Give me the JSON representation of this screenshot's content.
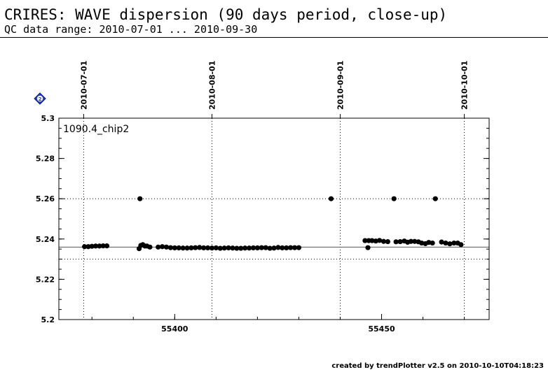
{
  "title": "CRIRES: WAVE dispersion (90 days period, close-up)",
  "subtitle": "QC data range: 2010-07-01 ... 2010-09-30",
  "footer": "created by trendPlotter v2.5 on 2010-10-10T04:18:23",
  "badge_text": "2",
  "chart_data": {
    "type": "scatter",
    "panel_label": "1090.4_chip2",
    "xlim": [
      55372,
      55476
    ],
    "ylim": [
      5.2,
      5.3
    ],
    "xticks": [
      55400,
      55450
    ],
    "yticks": [
      5.2,
      5.22,
      5.24,
      5.26,
      5.28,
      5.3
    ],
    "ytick_labels": [
      "5.2",
      "5.22",
      "5.24",
      "5.26",
      "5.28",
      "5.3"
    ],
    "xtick_labels": [
      "55400",
      "55450"
    ],
    "date_markers": [
      {
        "x": 55378,
        "label": "2010-07-01"
      },
      {
        "x": 55409,
        "label": "2010-08-01"
      },
      {
        "x": 55440,
        "label": "2010-09-01"
      },
      {
        "x": 55470,
        "label": "2010-10-01"
      }
    ],
    "reference_lines": {
      "mean": 5.236,
      "limits": [
        5.23,
        5.26
      ]
    },
    "grid": "dotted at date markers and limits",
    "points": {
      "x": [
        55378.2,
        55379.1,
        55380.0,
        55380.9,
        55381.8,
        55382.7,
        55383.6,
        55391.4,
        55391.8,
        55392.3,
        55392.8,
        55393.3,
        55394.0,
        55396.0,
        55397.0,
        55398.0,
        55399.0,
        55400.0,
        55401.0,
        55402.0,
        55403.0,
        55404.0,
        55405.0,
        55406.0,
        55407.0,
        55408.0,
        55409.0,
        55410.0,
        55411.0,
        55412.0,
        55413.0,
        55414.0,
        55415.0,
        55416.0,
        55417.0,
        55418.0,
        55419.0,
        55420.0,
        55421.0,
        55422.0,
        55423.0,
        55424.0,
        55425.0,
        55426.0,
        55427.0,
        55428.0,
        55429.0,
        55430.0,
        55391.6,
        55437.8,
        55446.0,
        55446.9,
        55447.7,
        55448.6,
        55449.5,
        55450.5,
        55451.5,
        55453.5,
        55454.5,
        55455.5,
        55456.3,
        55457.1,
        55458.0,
        55458.9,
        55459.7,
        55460.6,
        55461.4,
        55464.5,
        55465.5,
        55466.5,
        55467.5,
        55468.4,
        55469.2,
        55446.7,
        55453.0,
        55463.0,
        55462.3
      ],
      "y": [
        5.2362,
        5.2362,
        5.2364,
        5.2365,
        5.2365,
        5.2366,
        5.2366,
        5.2352,
        5.2368,
        5.2372,
        5.2365,
        5.2365,
        5.236,
        5.236,
        5.2362,
        5.236,
        5.2357,
        5.2356,
        5.2356,
        5.2355,
        5.2355,
        5.2356,
        5.2357,
        5.2358,
        5.2356,
        5.2356,
        5.2355,
        5.2356,
        5.2354,
        5.2355,
        5.2356,
        5.2355,
        5.2354,
        5.2354,
        5.2355,
        5.2355,
        5.2356,
        5.2356,
        5.2357,
        5.2357,
        5.2354,
        5.2355,
        5.2358,
        5.2356,
        5.2356,
        5.2357,
        5.2357,
        5.2357,
        5.26,
        5.26,
        5.2392,
        5.2392,
        5.2392,
        5.239,
        5.2393,
        5.2388,
        5.2387,
        5.2386,
        5.2387,
        5.239,
        5.2384,
        5.2388,
        5.2388,
        5.2386,
        5.238,
        5.2377,
        5.2383,
        5.2385,
        5.238,
        5.2376,
        5.238,
        5.238,
        5.2372,
        5.2357,
        5.26,
        5.26,
        5.238
      ]
    }
  }
}
